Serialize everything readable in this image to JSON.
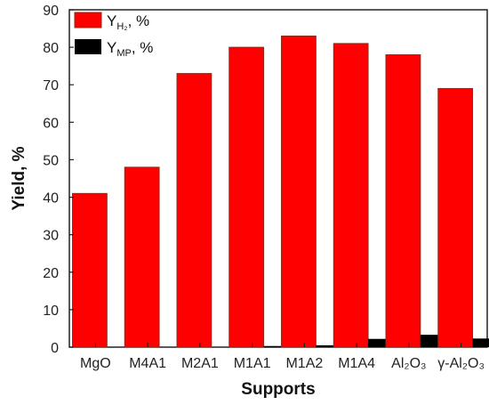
{
  "chart_data": {
    "type": "bar",
    "xlabel": "Supports",
    "ylabel": "Yield, %",
    "ylim": [
      0,
      90
    ],
    "yticks": [
      0,
      10,
      20,
      30,
      40,
      50,
      60,
      70,
      80,
      90
    ],
    "categories": [
      {
        "main": "MgO",
        "sub": ""
      },
      {
        "main": "M4A1",
        "sub": ""
      },
      {
        "main": "M2A1",
        "sub": ""
      },
      {
        "main": "M1A1",
        "sub": ""
      },
      {
        "main": "M1A2",
        "sub": ""
      },
      {
        "main": "M1A4",
        "sub": ""
      },
      {
        "main": "Al₂O₃",
        "sub": ""
      },
      {
        "main": "γ-Al₂O₃",
        "sub": ""
      }
    ],
    "series": [
      {
        "name": "Y_H2, %",
        "name_main": "Y",
        "name_sub": "H₂",
        "name_tail": ", %",
        "color": "#ff0000",
        "values": [
          41,
          48,
          73,
          80,
          83,
          81,
          78,
          69
        ]
      },
      {
        "name": "Y_MP, %",
        "name_main": "Y",
        "name_sub": "MP",
        "name_tail": ", %",
        "color": "#000000",
        "values": [
          0,
          0,
          0,
          0.3,
          0.5,
          2.2,
          3.3,
          2.3
        ]
      }
    ],
    "legend_position": "top-left",
    "grid": false
  }
}
